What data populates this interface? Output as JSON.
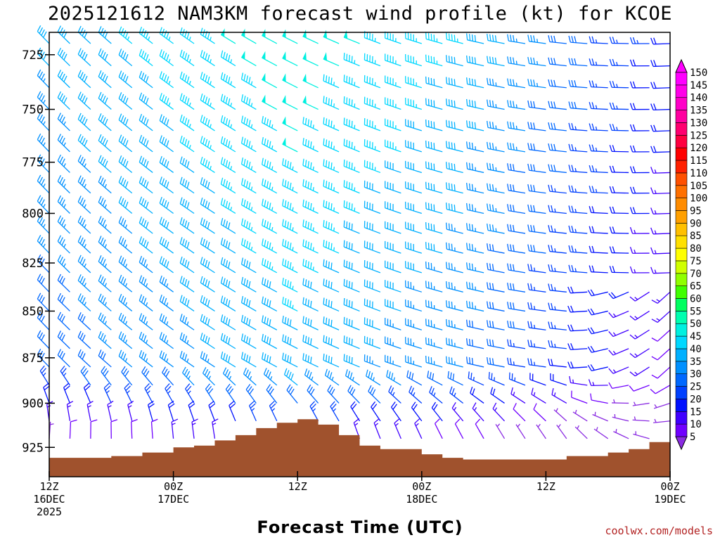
{
  "chart_data": {
    "type": "heatmap",
    "title": "2025121612 NAM3KM forecast wind profile (kt) for KCOE",
    "xlabel": "Forecast Time (UTC)",
    "ylabel": "",
    "credit": "coolwx.com/models",
    "y_pressure_range": [
      942,
      715
    ],
    "y_ticks": [
      725,
      750,
      775,
      800,
      825,
      850,
      875,
      900,
      925
    ],
    "x_hours_range": [
      0,
      60
    ],
    "x_ticks": [
      {
        "hour": 0,
        "line1": "12Z",
        "line2": "16DEC",
        "line3": "2025"
      },
      {
        "hour": 12,
        "line1": "00Z",
        "line2": "17DEC",
        "line3": ""
      },
      {
        "hour": 24,
        "line1": "12Z",
        "line2": "",
        "line3": ""
      },
      {
        "hour": 36,
        "line1": "00Z",
        "line2": "18DEC",
        "line3": ""
      },
      {
        "hour": 48,
        "line1": "12Z",
        "line2": "",
        "line3": ""
      },
      {
        "hour": 60,
        "line1": "00Z",
        "line2": "19DEC",
        "line3": ""
      }
    ],
    "barb_levels_hpa": [
      720,
      730,
      740,
      750,
      760,
      770,
      780,
      790,
      800,
      810,
      820,
      830,
      840,
      850,
      860,
      870,
      880,
      890,
      900,
      910,
      920
    ],
    "barb_hours": [
      0,
      2,
      4,
      6,
      8,
      10,
      12,
      14,
      16,
      18,
      20,
      22,
      24,
      26,
      28,
      30,
      32,
      34,
      36,
      38,
      40,
      42,
      44,
      46,
      48,
      50,
      52,
      54,
      56,
      58,
      60
    ],
    "terrain_surface_hpa": [
      {
        "hour": 0,
        "p": 931
      },
      {
        "hour": 6,
        "p": 930
      },
      {
        "hour": 9,
        "p": 928
      },
      {
        "hour": 12,
        "p": 925
      },
      {
        "hour": 14,
        "p": 924
      },
      {
        "hour": 16,
        "p": 921
      },
      {
        "hour": 18,
        "p": 918
      },
      {
        "hour": 20,
        "p": 914
      },
      {
        "hour": 22,
        "p": 911
      },
      {
        "hour": 24,
        "p": 909
      },
      {
        "hour": 26,
        "p": 912
      },
      {
        "hour": 28,
        "p": 918
      },
      {
        "hour": 30,
        "p": 924
      },
      {
        "hour": 32,
        "p": 926
      },
      {
        "hour": 36,
        "p": 929
      },
      {
        "hour": 38,
        "p": 931
      },
      {
        "hour": 40,
        "p": 932
      },
      {
        "hour": 44,
        "p": 932
      },
      {
        "hour": 48,
        "p": 932
      },
      {
        "hour": 50,
        "p": 930
      },
      {
        "hour": 54,
        "p": 928
      },
      {
        "hour": 56,
        "p": 926
      },
      {
        "hour": 58,
        "p": 922
      },
      {
        "hour": 60,
        "p": 919
      }
    ],
    "colorbar": {
      "values": [
        5,
        10,
        15,
        20,
        25,
        30,
        35,
        40,
        45,
        50,
        55,
        60,
        65,
        70,
        75,
        80,
        85,
        90,
        95,
        100,
        105,
        110,
        115,
        120,
        125,
        130,
        135,
        140,
        145,
        150
      ],
      "colors": [
        "#8a2be2",
        "#7000ff",
        "#4000ff",
        "#0010ff",
        "#0040ff",
        "#0068ff",
        "#0090ff",
        "#00b0ff",
        "#00d8ff",
        "#00f0e0",
        "#00ffb0",
        "#00ff60",
        "#40ff00",
        "#90ff00",
        "#d0ff00",
        "#ffff00",
        "#ffe000",
        "#ffc000",
        "#ffa000",
        "#ff8c00",
        "#ff7000",
        "#ff5000",
        "#ff2000",
        "#ff0000",
        "#ff0040",
        "#ff0070",
        "#ff00a0",
        "#ff00c8",
        "#ff00e8",
        "#ff00ff"
      ]
    },
    "terrain_color": "#a0522d"
  }
}
